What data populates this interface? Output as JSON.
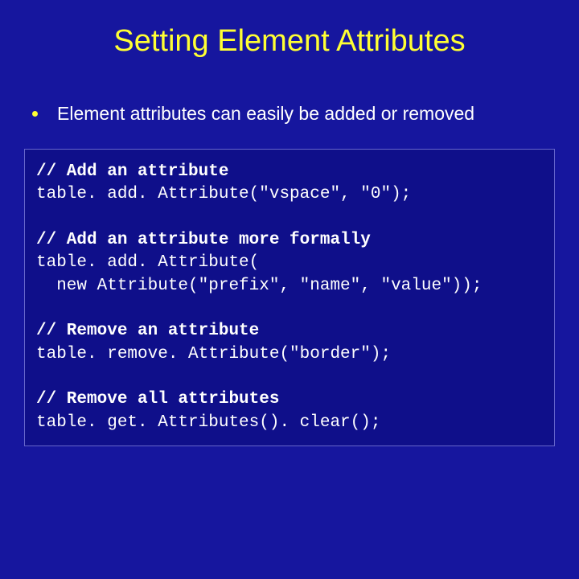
{
  "colors": {
    "background": "#16169e",
    "title": "#ffff33",
    "text": "#ffffff",
    "code_box_bg": "#0f0f8a",
    "code_box_border": "#6666cc",
    "bullet": "#ffff33"
  },
  "typography": {
    "title_fontsize": 38,
    "body_fontsize": 23,
    "code_fontsize": 21,
    "title_font": "Arial",
    "code_font": "Courier New"
  },
  "slide": {
    "title": "Setting Element Attributes",
    "bullets": [
      {
        "text": "Element attributes can easily be added or removed"
      }
    ],
    "code_blocks": [
      {
        "comment": "// Add an attribute",
        "line": "table. add. Attribute(\"vspace\", \"0\");"
      },
      {
        "comment": "// Add an attribute more formally",
        "line": "table. add. Attribute(\n  new Attribute(\"prefix\", \"name\", \"value\"));"
      },
      {
        "comment": "// Remove an attribute",
        "line": "table. remove. Attribute(\"border\");"
      },
      {
        "comment": "// Remove all attributes",
        "line": "table. get. Attributes(). clear();"
      }
    ]
  }
}
